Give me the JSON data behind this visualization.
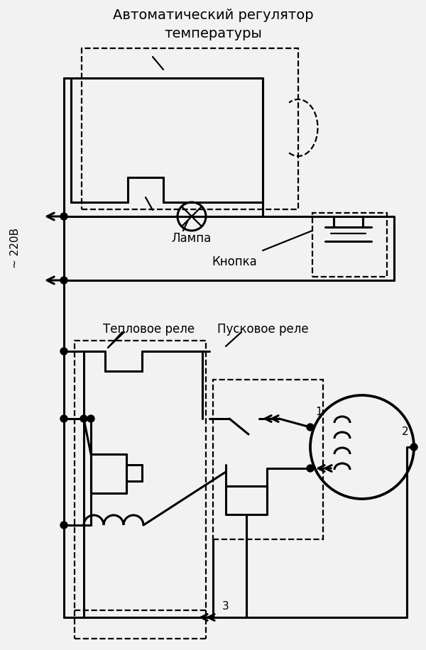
{
  "bg_color": "#f2f2f2",
  "line_color": "#000000",
  "lw": 2.2,
  "lw_thin": 1.6,
  "figsize": [
    6.0,
    9.16
  ],
  "dpi": 100,
  "label_auto_reg_1": "Автоматический регулятор",
  "label_auto_reg_2": "температуры",
  "label_lampa": "Лампа",
  "label_knopka": "Кнопка",
  "label_teplovoe": "Тепловое реле",
  "label_puskovoe": "Пусковое реле",
  "label_220": "~ 220В"
}
